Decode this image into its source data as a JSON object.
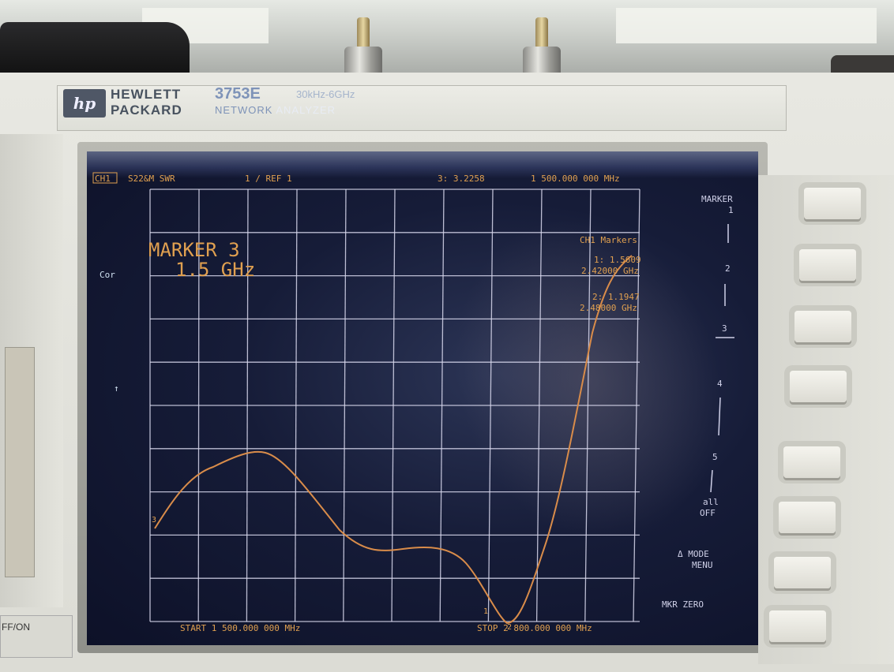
{
  "instrument": {
    "brand_line1": "HEWLETT",
    "brand_line2": "PACKARD",
    "model": "3753E",
    "range": "30kHz-6GHz",
    "name_left": "NETWORK",
    "name_right": "ANALYZER",
    "power_label": "FF/ON"
  },
  "display": {
    "channel": "CH1",
    "measurement": "S22&M SWR",
    "scale": "1  / REF 1",
    "active_marker_readout": "3: 3.2258",
    "active_marker_freq": "1 500.000 000 MHz",
    "marker_title": "MARKER 3",
    "marker_freq": "1.5 GHz",
    "cor": "Cor",
    "markers_header": "CH1 Markers",
    "marker1_value": "1: 1.5609",
    "marker1_freq": "2.42000 GHz",
    "marker2_value": "2: 1.1947",
    "marker2_freq": "2.48000 GHz",
    "start": "START 1 500.000 000 MHz",
    "stop": "STOP 2 800.000 000 MHz",
    "trace_color": "#d98c4a",
    "grid_color": "#d9d9ee",
    "text_color": "#e0a050"
  },
  "softkeys": {
    "title": "MARKER",
    "k1": "1",
    "k2": "2",
    "k3": "3",
    "k4": "4",
    "k5": "5",
    "all_off_1": "all",
    "all_off_2": "OFF",
    "mode_1": "Δ MODE",
    "mode_2": "MENU",
    "zero": "MKR ZERO"
  }
}
